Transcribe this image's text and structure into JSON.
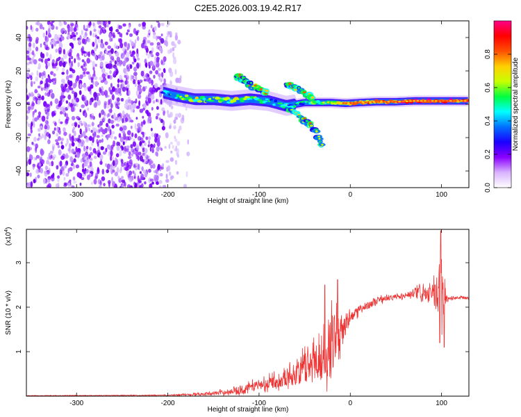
{
  "title": "C2E5.2026.003.19.42.R17",
  "colors": {
    "snr_line": "#ee3333",
    "spectrum_ridge": "#ff2a1a"
  },
  "chart_data": [
    {
      "type": "heatmap",
      "title": "C2E5.2026.003.19.42.R17",
      "xlabel": "Height of straight line (km)",
      "ylabel": "Frequency (Hz)",
      "xlim": [
        -355,
        130
      ],
      "ylim": [
        -50,
        50
      ],
      "x_ticks": [
        -300,
        -200,
        -100,
        0,
        100
      ],
      "y_ticks": [
        -40,
        -20,
        0,
        20,
        40
      ],
      "colorbar": {
        "label": "Normalized spectral amplitude",
        "range": [
          0.0,
          1.0
        ],
        "ticks": [
          "0.0",
          "0.2",
          "0.4",
          "0.6",
          "0.8"
        ],
        "tick_values": [
          0.0,
          0.2,
          0.4,
          0.6,
          0.8
        ],
        "colors": [
          "#ffffff",
          "#d9b3ff",
          "#8a00ff",
          "#1a00ff",
          "#0070ff",
          "#00ffff",
          "#00ff40",
          "#c8ff00",
          "#ffd000",
          "#ff5000",
          "#ff0000",
          "#ff0088"
        ]
      },
      "noise_region_x": [
        -355,
        -175
      ],
      "ridge": {
        "x": [
          -205,
          -190,
          -170,
          -150,
          -130,
          -110,
          -90,
          -70,
          -50,
          -35,
          -20,
          -5,
          10,
          30,
          50,
          70,
          90,
          110,
          130
        ],
        "y": [
          7,
          5,
          3,
          3,
          2,
          3,
          2,
          -1,
          1,
          1,
          1,
          0.5,
          1,
          1.5,
          1.5,
          2,
          2,
          2,
          2
        ],
        "peak_amplitude": [
          0.3,
          0.45,
          0.6,
          0.5,
          0.55,
          0.5,
          0.45,
          0.4,
          0.45,
          0.55,
          0.6,
          0.65,
          0.7,
          0.8,
          0.85,
          0.9,
          0.9,
          0.9,
          0.9
        ]
      },
      "upper_branch": {
        "x": [
          -125,
          -120,
          -115,
          -110,
          -100,
          -90
        ],
        "y": [
          17,
          16,
          14,
          12,
          9,
          7
        ]
      },
      "lower_branch": {
        "x": [
          -70,
          -60,
          -50,
          -40,
          -35,
          -30
        ],
        "y": [
          -2,
          -6,
          -10,
          -14,
          -20,
          -26
        ]
      },
      "side_branch": {
        "x": [
          -70,
          -60,
          -50,
          -40
        ],
        "y": [
          12,
          10,
          6,
          3
        ]
      }
    },
    {
      "type": "line",
      "xlabel": "Height of straight line (km)",
      "ylabel": "SNR (10 * v/v)",
      "y_multiplier": "(x10",
      "y_multiplier_exp": "4",
      "y_multiplier_close": ")",
      "xlim": [
        -355,
        130
      ],
      "ylim": [
        0,
        3.75
      ],
      "x_ticks": [
        -300,
        -200,
        -100,
        0,
        100
      ],
      "y_ticks": [
        1,
        2,
        3
      ],
      "series": [
        {
          "envelope_x": [
            -355,
            -200,
            -160,
            -140,
            -120,
            -100,
            -80,
            -60,
            -45,
            -30,
            -20,
            -10,
            0,
            10,
            20,
            30,
            40,
            60,
            70,
            75,
            80,
            85,
            90,
            95,
            97,
            100,
            105,
            110,
            120,
            130
          ],
          "envelope_mean": [
            0.01,
            0.02,
            0.05,
            0.08,
            0.15,
            0.25,
            0.35,
            0.5,
            0.7,
            0.9,
            1.2,
            1.5,
            1.75,
            1.95,
            2.05,
            2.15,
            2.2,
            2.25,
            2.3,
            2.3,
            2.3,
            2.28,
            2.3,
            2.3,
            2.2,
            2.2,
            2.2,
            2.2,
            2.22,
            2.2
          ],
          "envelope_amp": [
            0.005,
            0.01,
            0.03,
            0.05,
            0.08,
            0.12,
            0.15,
            0.25,
            0.4,
            0.55,
            0.7,
            0.35,
            0.15,
            0.1,
            0.08,
            0.08,
            0.06,
            0.06,
            0.08,
            0.15,
            0.2,
            0.15,
            0.2,
            0.4,
            0.7,
            0.9,
            0.1,
            0.04,
            0.03,
            0.03
          ],
          "spikes": [
            {
              "x": -28,
              "y": 2.5
            },
            {
              "x": -14,
              "y": 2.62
            },
            {
              "x": 99,
              "y": 3.72
            },
            {
              "x": 103,
              "y": 1.1
            },
            {
              "x": 98,
              "y": 1.2
            }
          ]
        }
      ]
    }
  ]
}
